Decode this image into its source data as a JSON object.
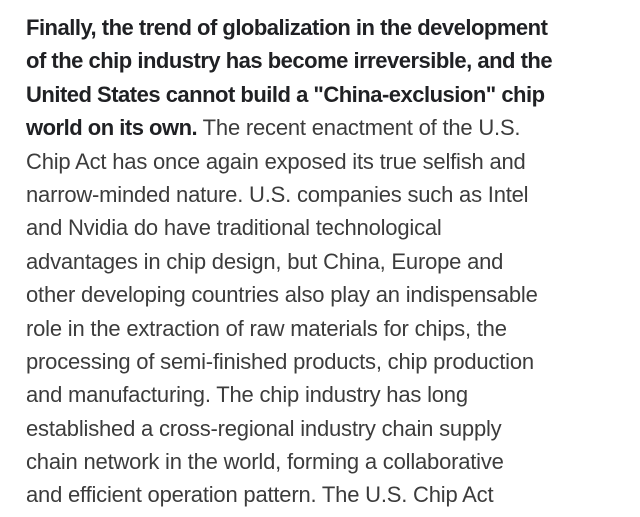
{
  "page": {
    "background_color": "#ffffff",
    "bold_text_color": "#202124",
    "body_text_color": "#3c3c3c"
  },
  "article": {
    "bold_sentence": "Finally, the trend of globalization in the development of the chip industry has become irreversible, and the United States cannot build a \"China-exclusion\" chip world on its own.",
    "body_sentence": "The recent enactment of the U.S. Chip Act has once again exposed its true selfish and narrow-minded nature. U.S. companies such as Intel and Nvidia do have traditional technological advantages in chip design, but China, Europe and other developing countries also play an indispensable role in the extraction of raw materials for chips, the processing of semi-finished products, chip production and manufacturing. The chip industry has long established a cross-regional industry chain supply chain network in the world, forming a collaborative and efficient operation pattern. The U.S. Chip Act",
    "lines": [
      {
        "style": "bold",
        "text": "Finally, the trend of globalization in the development"
      },
      {
        "style": "bold",
        "text": "of the chip industry has become irreversible, and the"
      },
      {
        "style": "bold",
        "text": "United States cannot build a \"China-exclusion\" chip"
      },
      {
        "style": "mixed",
        "bold": "world on its own.",
        "regular": " The recent enactment of the U.S."
      },
      {
        "style": "regular",
        "text": "Chip Act has once again exposed its true selfish and"
      },
      {
        "style": "regular",
        "text": "narrow-minded nature. U.S. companies such as Intel"
      },
      {
        "style": "regular",
        "text": "and Nvidia do have traditional technological"
      },
      {
        "style": "regular",
        "text": "advantages in chip design, but China, Europe and"
      },
      {
        "style": "regular",
        "text": "other developing countries also play an indispensable"
      },
      {
        "style": "regular",
        "text": "role in the extraction of raw materials for chips, the"
      },
      {
        "style": "regular",
        "text": "processing of semi-finished products, chip production"
      },
      {
        "style": "regular",
        "text": "and manufacturing. The chip industry has long"
      },
      {
        "style": "regular",
        "text": "established a cross-regional industry chain supply"
      },
      {
        "style": "regular",
        "text": "chain network in the world, forming a collaborative"
      },
      {
        "style": "regular",
        "text": "and efficient operation pattern. The U.S. Chip Act"
      }
    ]
  }
}
